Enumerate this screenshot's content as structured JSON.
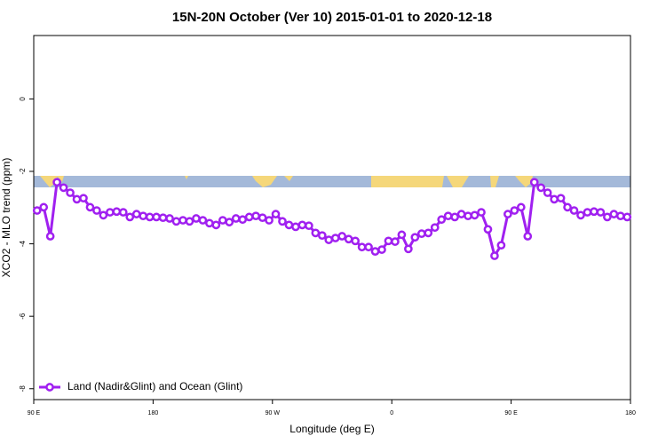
{
  "chart_data": {
    "type": "line",
    "title": "15N-20N October (Ver 10)   2015-01-01 to 2020-12-18",
    "xlabel": "Longitude (deg E)",
    "ylabel": "XCO2 - MLO trend (ppm)",
    "x": [
      92.5,
      97.5,
      102.5,
      107.5,
      112.5,
      117.5,
      122.5,
      127.5,
      132.5,
      137.5,
      142.5,
      147.5,
      152.5,
      157.5,
      162.5,
      167.5,
      172.5,
      177.5,
      182.5,
      187.5,
      192.5,
      197.5,
      202.5,
      207.5,
      212.5,
      217.5,
      222.5,
      227.5,
      232.5,
      237.5,
      242.5,
      247.5,
      252.5,
      257.5,
      262.5,
      267.5,
      272.5,
      277.5,
      282.5,
      287.5,
      292.5,
      297.5,
      302.5,
      307.5,
      312.5,
      317.5,
      322.5,
      327.5,
      332.5,
      337.5,
      342.5,
      347.5,
      352.5,
      357.5,
      362.5,
      367.5,
      372.5,
      377.5,
      382.5,
      387.5,
      392.5,
      397.5,
      402.5,
      407.5,
      412.5,
      417.5,
      422.5,
      427.5,
      432.5,
      437.5,
      442.5,
      447.5,
      452.5,
      457.5,
      462.5,
      467.5,
      472.5,
      477.5,
      482.5,
      487.5,
      492.5,
      497.5,
      502.5,
      507.5,
      512.5,
      517.5,
      522.5,
      527.5,
      532.5,
      537.5
    ],
    "series": [
      {
        "name": "Land (Nadir&Glint) and Ocean (Glint)",
        "color": "#a020f0",
        "values": [
          -3.08,
          -2.99,
          -3.79,
          -2.3,
          -2.45,
          -2.59,
          -2.77,
          -2.74,
          -2.99,
          -3.08,
          -3.21,
          -3.13,
          -3.11,
          -3.13,
          -3.26,
          -3.18,
          -3.23,
          -3.26,
          -3.26,
          -3.28,
          -3.3,
          -3.38,
          -3.35,
          -3.38,
          -3.3,
          -3.35,
          -3.43,
          -3.48,
          -3.35,
          -3.4,
          -3.3,
          -3.33,
          -3.26,
          -3.23,
          -3.28,
          -3.35,
          -3.18,
          -3.38,
          -3.48,
          -3.53,
          -3.48,
          -3.5,
          -3.7,
          -3.77,
          -3.89,
          -3.84,
          -3.79,
          -3.87,
          -3.92,
          -4.09,
          -4.09,
          -4.21,
          -4.16,
          -3.92,
          -3.94,
          -3.75,
          -4.14,
          -3.82,
          -3.72,
          -3.7,
          -3.55,
          -3.33,
          -3.23,
          -3.26,
          -3.18,
          -3.23,
          -3.21,
          -3.13,
          -3.6,
          -4.33,
          -4.04,
          -3.18,
          -3.08,
          -2.99,
          -3.79,
          -2.3,
          -2.45,
          -2.59,
          -2.77,
          -2.74,
          -2.99,
          -3.08,
          -3.21,
          -3.13,
          -3.11,
          -3.13,
          -3.26,
          -3.18,
          -3.23,
          -3.26
        ]
      }
    ],
    "xlim": [
      90,
      540
    ],
    "xticks": [
      {
        "value": 90,
        "label": "90 E"
      },
      180,
      {
        "value": 270,
        "label": "90 W"
      },
      {
        "value": 360,
        "label": "0"
      },
      {
        "value": 450,
        "label": "90 E"
      },
      {
        "value": 540,
        "label": "180"
      }
    ],
    "ylim": [
      -8.3,
      1.75
    ],
    "yticks": [
      0,
      -2,
      -4,
      -6,
      -8
    ],
    "grid": false,
    "legend": "bottom left"
  }
}
